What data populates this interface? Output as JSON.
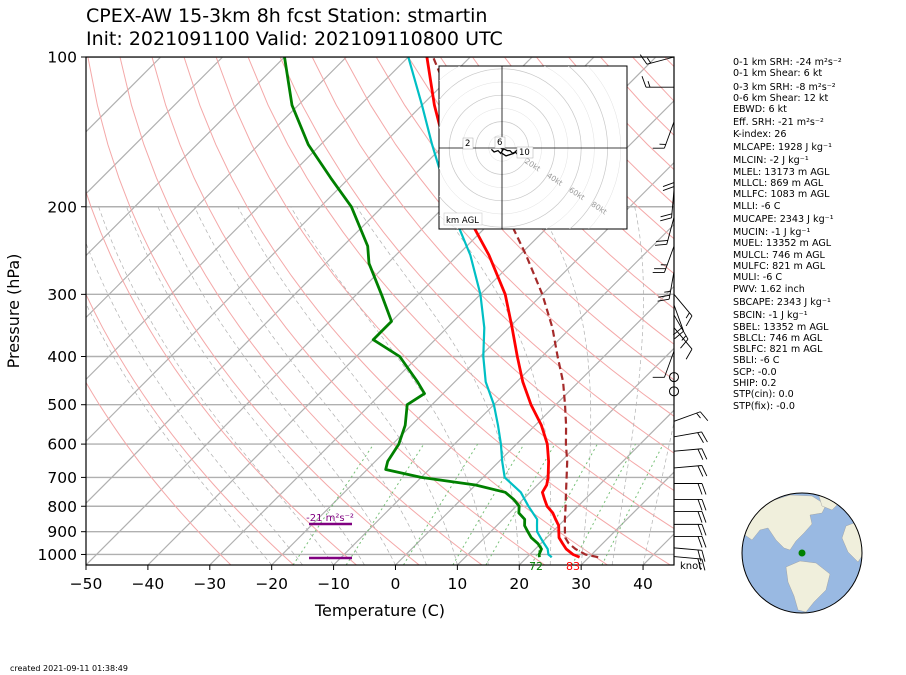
{
  "title": {
    "line1": "CPEX-AW 15-3km  8h fcst  Station: stmartin",
    "line2": "Init: 2021091100  Valid: 202109110800 UTC"
  },
  "chart_data": {
    "type": "skew-t",
    "xlabel": "Temperature (C)",
    "ylabel": "Pressure (hPa)",
    "xlim": [
      -50,
      45
    ],
    "ylim": [
      1050,
      100
    ],
    "yscale": "log",
    "xticks": [
      "−50",
      "−40",
      "−30",
      "−20",
      "−10",
      "0",
      "10",
      "20",
      "30",
      "40"
    ],
    "yticks": [
      "100",
      "200",
      "300",
      "400",
      "500",
      "600",
      "700",
      "800",
      "900",
      "1000"
    ],
    "colors": {
      "temperature": "#ff0000",
      "dewpoint": "#008000",
      "wetbulb": "#00bfc4",
      "parcel": "#a52a2a",
      "isotherms": "#b0b0b0",
      "dry_adiabats": "#f4a8a8",
      "moist_adiabats": "#b0b0b0",
      "mixing_ratio": "#77c077",
      "srh_bar": "#800080"
    },
    "temperature_profile": [
      {
        "p": 1013,
        "t": 28.5
      },
      {
        "p": 1000,
        "t": 27
      },
      {
        "p": 975,
        "t": 25
      },
      {
        "p": 950,
        "t": 23.5
      },
      {
        "p": 925,
        "t": 22
      },
      {
        "p": 900,
        "t": 21
      },
      {
        "p": 875,
        "t": 20
      },
      {
        "p": 850,
        "t": 18.5
      },
      {
        "p": 825,
        "t": 17
      },
      {
        "p": 800,
        "t": 15
      },
      {
        "p": 775,
        "t": 13.5
      },
      {
        "p": 750,
        "t": 12
      },
      {
        "p": 725,
        "t": 11.5
      },
      {
        "p": 700,
        "t": 10.5
      },
      {
        "p": 650,
        "t": 8
      },
      {
        "p": 600,
        "t": 5
      },
      {
        "p": 550,
        "t": 1
      },
      {
        "p": 500,
        "t": -4
      },
      {
        "p": 450,
        "t": -9
      },
      {
        "p": 400,
        "t": -14
      },
      {
        "p": 350,
        "t": -19.5
      },
      {
        "p": 300,
        "t": -26
      },
      {
        "p": 250,
        "t": -35
      },
      {
        "p": 200,
        "t": -47
      },
      {
        "p": 175,
        "t": -53
      },
      {
        "p": 150,
        "t": -60
      },
      {
        "p": 125,
        "t": -68
      },
      {
        "p": 100,
        "t": -77
      }
    ],
    "dewpoint_profile": [
      {
        "p": 1013,
        "t": 22
      },
      {
        "p": 1000,
        "t": 21.5
      },
      {
        "p": 975,
        "t": 21
      },
      {
        "p": 950,
        "t": 19.5
      },
      {
        "p": 925,
        "t": 17.5
      },
      {
        "p": 900,
        "t": 16
      },
      {
        "p": 875,
        "t": 14.5
      },
      {
        "p": 850,
        "t": 13.5
      },
      {
        "p": 825,
        "t": 11.5
      },
      {
        "p": 800,
        "t": 10.5
      },
      {
        "p": 775,
        "t": 8.5
      },
      {
        "p": 750,
        "t": 6
      },
      {
        "p": 725,
        "t": 0
      },
      {
        "p": 700,
        "t": -10
      },
      {
        "p": 675,
        "t": -17
      },
      {
        "p": 650,
        "t": -18
      },
      {
        "p": 600,
        "t": -19
      },
      {
        "p": 550,
        "t": -21
      },
      {
        "p": 500,
        "t": -24
      },
      {
        "p": 475,
        "t": -23
      },
      {
        "p": 450,
        "t": -26
      },
      {
        "p": 400,
        "t": -33
      },
      {
        "p": 370,
        "t": -40
      },
      {
        "p": 340,
        "t": -40
      },
      {
        "p": 300,
        "t": -46
      },
      {
        "p": 260,
        "t": -53
      },
      {
        "p": 240,
        "t": -56
      },
      {
        "p": 200,
        "t": -65
      },
      {
        "p": 175,
        "t": -73
      },
      {
        "p": 150,
        "t": -82
      },
      {
        "p": 125,
        "t": -91
      },
      {
        "p": 100,
        "t": -100
      }
    ],
    "wetbulb_profile": [
      {
        "p": 1013,
        "t": 24
      },
      {
        "p": 1000,
        "t": 23
      },
      {
        "p": 975,
        "t": 22
      },
      {
        "p": 950,
        "t": 20.5
      },
      {
        "p": 925,
        "t": 19
      },
      {
        "p": 900,
        "t": 17.5
      },
      {
        "p": 875,
        "t": 16.5
      },
      {
        "p": 850,
        "t": 15.5
      },
      {
        "p": 800,
        "t": 12
      },
      {
        "p": 750,
        "t": 8.5
      },
      {
        "p": 700,
        "t": 3.5
      },
      {
        "p": 650,
        "t": 0.5
      },
      {
        "p": 600,
        "t": -2.5
      },
      {
        "p": 550,
        "t": -6
      },
      {
        "p": 500,
        "t": -10
      },
      {
        "p": 450,
        "t": -15
      },
      {
        "p": 400,
        "t": -19.5
      },
      {
        "p": 350,
        "t": -24
      },
      {
        "p": 300,
        "t": -30
      },
      {
        "p": 250,
        "t": -38
      },
      {
        "p": 200,
        "t": -49
      },
      {
        "p": 175,
        "t": -55
      },
      {
        "p": 150,
        "t": -62
      },
      {
        "p": 125,
        "t": -70
      },
      {
        "p": 100,
        "t": -80
      }
    ],
    "parcel_profile": [
      {
        "p": 1013,
        "t": 31.5
      },
      {
        "p": 1000,
        "t": 29
      },
      {
        "p": 975,
        "t": 26.5
      },
      {
        "p": 950,
        "t": 24.5
      },
      {
        "p": 925,
        "t": 23
      },
      {
        "p": 900,
        "t": 22
      },
      {
        "p": 850,
        "t": 20
      },
      {
        "p": 800,
        "t": 18
      },
      {
        "p": 750,
        "t": 15.8
      },
      {
        "p": 700,
        "t": 13.5
      },
      {
        "p": 650,
        "t": 11
      },
      {
        "p": 600,
        "t": 8
      },
      {
        "p": 550,
        "t": 5
      },
      {
        "p": 500,
        "t": 1.5
      },
      {
        "p": 450,
        "t": -2.5
      },
      {
        "p": 400,
        "t": -7.5
      },
      {
        "p": 350,
        "t": -13
      },
      {
        "p": 300,
        "t": -20
      },
      {
        "p": 250,
        "t": -29
      },
      {
        "p": 200,
        "t": -40.5
      },
      {
        "p": 175,
        "t": -47.5
      },
      {
        "p": 150,
        "t": -55.5
      },
      {
        "p": 125,
        "t": -65
      },
      {
        "p": 100,
        "t": -76
      }
    ],
    "surface_labels": {
      "dewpoint_f": "72",
      "temperature_f": "83"
    },
    "srh_label": "-21 m²s⁻²",
    "knot_label": "knot",
    "hodograph": {
      "speed_rings_kt": [
        20,
        40,
        60,
        80
      ],
      "ring_labels": [
        "20kt",
        "40kt",
        "60kt",
        "80kt"
      ],
      "height_labels": [
        "2",
        "6",
        "10"
      ],
      "agl_label": "km AGL",
      "trace_uv_kt": [
        [
          -8,
          -1
        ],
        [
          -6,
          -3
        ],
        [
          -3,
          -2
        ],
        [
          -1,
          -4
        ],
        [
          1,
          -1
        ],
        [
          -1,
          0
        ],
        [
          2,
          -1
        ],
        [
          4,
          -2
        ],
        [
          6,
          -2
        ],
        [
          8,
          -4
        ],
        [
          10,
          -3
        ],
        [
          12,
          -5
        ],
        [
          14,
          -3
        ],
        [
          15,
          -1
        ],
        [
          13,
          0
        ],
        [
          11,
          -2
        ],
        [
          9,
          -4
        ],
        [
          6,
          -5
        ],
        [
          3,
          -6
        ],
        [
          0,
          -4
        ]
      ]
    },
    "wind_barbs": [
      {
        "p": 100,
        "dir": 255,
        "spd": 15
      },
      {
        "p": 115,
        "dir": 270,
        "spd": 15
      },
      {
        "p": 135,
        "dir": 200,
        "spd": 15
      },
      {
        "p": 160,
        "dir": 180,
        "spd": 20
      },
      {
        "p": 185,
        "dir": 185,
        "spd": 20
      },
      {
        "p": 210,
        "dir": 195,
        "spd": 20
      },
      {
        "p": 240,
        "dir": 200,
        "spd": 25
      },
      {
        "p": 270,
        "dir": 190,
        "spd": 25
      },
      {
        "p": 300,
        "dir": 140,
        "spd": 15
      },
      {
        "p": 315,
        "dir": 160,
        "spd": 20
      },
      {
        "p": 330,
        "dir": 150,
        "spd": 15
      },
      {
        "p": 350,
        "dir": 140,
        "spd": 10
      },
      {
        "p": 390,
        "dir": 200,
        "spd": 10
      },
      {
        "p": 440,
        "dir": 0,
        "spd": 0
      },
      {
        "p": 470,
        "dir": 0,
        "spd": 0
      },
      {
        "p": 540,
        "dir": 70,
        "spd": 15
      },
      {
        "p": 580,
        "dir": 80,
        "spd": 20
      },
      {
        "p": 620,
        "dir": 85,
        "spd": 20
      },
      {
        "p": 670,
        "dir": 85,
        "spd": 20
      },
      {
        "p": 720,
        "dir": 90,
        "spd": 20
      },
      {
        "p": 775,
        "dir": 90,
        "spd": 20
      },
      {
        "p": 820,
        "dir": 90,
        "spd": 20
      },
      {
        "p": 870,
        "dir": 90,
        "spd": 20
      },
      {
        "p": 920,
        "dir": 90,
        "spd": 20
      },
      {
        "p": 970,
        "dir": 95,
        "spd": 20
      },
      {
        "p": 1010,
        "dir": 95,
        "spd": 20
      }
    ]
  },
  "stats": [
    "0-1 km SRH: -24 m²s⁻²",
    "0-1 km Shear: 6 kt",
    "0-3 km SRH: -8 m²s⁻²",
    "0-6 km Shear: 12 kt",
    "EBWD: 6 kt",
    "Eff. SRH: -21 m²s⁻²",
    "K-index: 26",
    "MLCAPE: 1928 J kg⁻¹",
    "MLCIN: -2 J kg⁻¹",
    "MLEL: 13173 m AGL",
    "MLLCL: 869 m AGL",
    "MLLFC: 1083 m AGL",
    "MLLI: -6 C",
    "MUCAPE: 2343 J kg⁻¹",
    "MUCIN: -1 J kg⁻¹",
    "MUEL: 13352 m AGL",
    "MULCL: 746 m AGL",
    "MULFC: 821 m AGL",
    "MULI: -6 C",
    "PWV: 1.62 inch",
    "SBCAPE: 2343 J kg⁻¹",
    "SBCIN: -1 J kg⁻¹",
    "SBEL: 13352 m AGL",
    "SBLCL: 746 m AGL",
    "SBLFC: 821 m AGL",
    "SBLI: -6 C",
    "SCP: -0.0",
    "SHIP: 0.2",
    "STP(cin): 0.0",
    "STP(fix): -0.0"
  ],
  "globe": {
    "ocean_color": "#99b9e2",
    "land_color": "#f0efdc",
    "marker_color": "#008000"
  },
  "footer": {
    "created": "created 2021-09-11 01:38:49"
  }
}
